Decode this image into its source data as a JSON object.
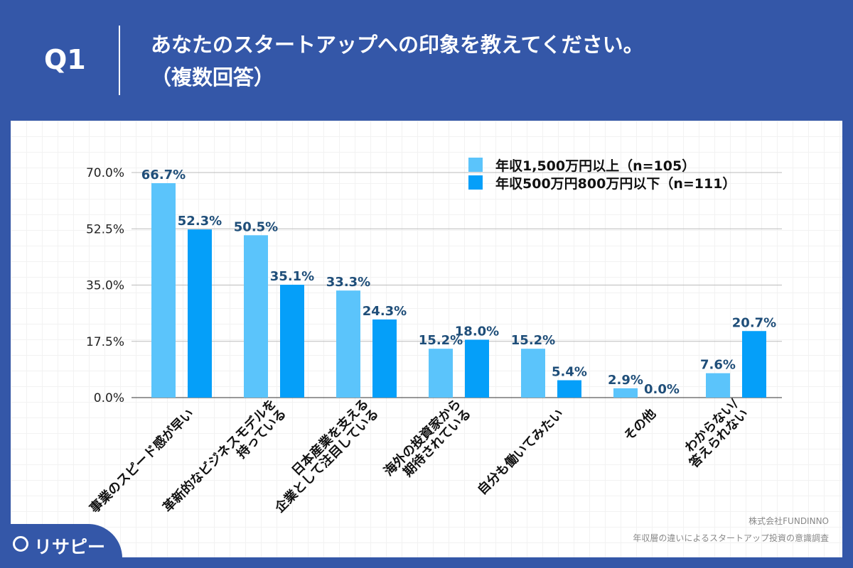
{
  "header": {
    "question": "Q1",
    "title_line1": "あなたのスタートアップへの印象を教えてください。",
    "title_line2": "（複数回答）"
  },
  "chart_data": {
    "type": "bar",
    "categories": [
      [
        "事業のスピード感が早い"
      ],
      [
        "革新的なビジネスモデルを",
        "持っている"
      ],
      [
        "日本産業を支える",
        "企業として注目している"
      ],
      [
        "海外の投資家から",
        "期待されている"
      ],
      [
        "自分も働いてみたい"
      ],
      [
        "その他"
      ],
      [
        "わからない/",
        "答えられない"
      ]
    ],
    "series": [
      {
        "name": "年収1,500万円以上（n=105）",
        "color": "#5bc4fb",
        "values": [
          66.7,
          50.5,
          33.3,
          15.2,
          15.2,
          2.9,
          7.6
        ]
      },
      {
        "name": "年収500万円800万円以下（n=111）",
        "color": "#059ff9",
        "values": [
          52.3,
          35.1,
          24.3,
          18.0,
          5.4,
          0.0,
          20.7
        ]
      }
    ],
    "ylim": [
      0,
      70
    ],
    "yticks": [
      "0.0%",
      "17.5%",
      "35.0%",
      "52.5%",
      "70.0%"
    ],
    "grid": true,
    "legend": "top-right",
    "label_color": "#1f4e79"
  },
  "footer": {
    "logo": "リサピー",
    "company": "株式会社FUNDINNO",
    "survey": "年収層の違いによるスタートアップ投資の意識調査"
  }
}
